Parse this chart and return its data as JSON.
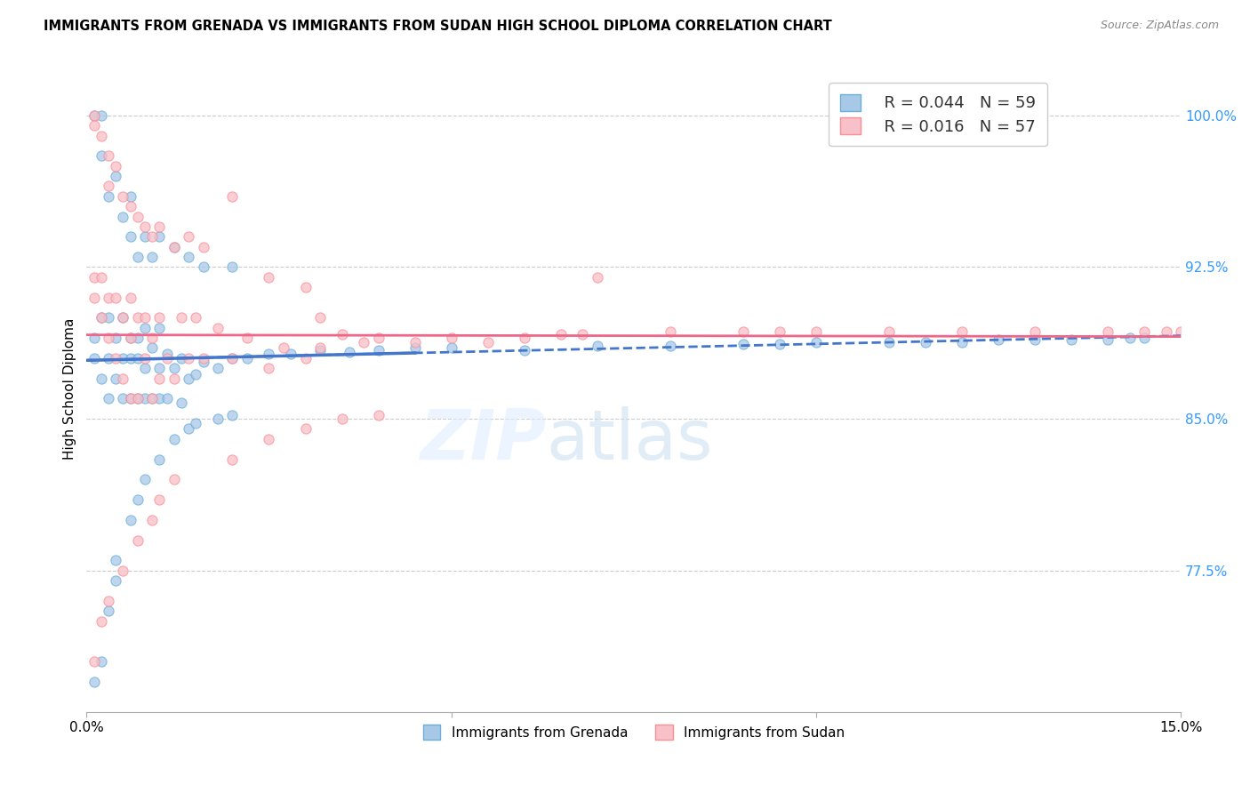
{
  "title": "IMMIGRANTS FROM GRENADA VS IMMIGRANTS FROM SUDAN HIGH SCHOOL DIPLOMA CORRELATION CHART",
  "source": "Source: ZipAtlas.com",
  "ylabel": "High School Diploma",
  "xmin": 0.0,
  "xmax": 0.15,
  "ymin": 0.705,
  "ymax": 1.025,
  "ytick_vals": [
    0.775,
    0.85,
    0.925,
    1.0
  ],
  "ytick_labels": [
    "77.5%",
    "85.0%",
    "92.5%",
    "100.0%"
  ],
  "xtick_vals": [
    0.0,
    0.05,
    0.1,
    0.15
  ],
  "xtick_labels": [
    "0.0%",
    "",
    "",
    "15.0%"
  ],
  "legend_r1": "R = 0.044",
  "legend_n1": "N = 59",
  "legend_r2": "R = 0.016",
  "legend_n2": "N = 57",
  "color_grenada_fill": "#a8c8e8",
  "color_grenada_edge": "#6baed6",
  "color_sudan_fill": "#f8c0c8",
  "color_sudan_edge": "#fc8d94",
  "color_blue_line": "#4477cc",
  "color_pink_line": "#ee6688",
  "color_blue_text": "#3399ff",
  "color_ytick": "#3399ff",
  "grenada_x": [
    0.001,
    0.001,
    0.002,
    0.002,
    0.003,
    0.003,
    0.003,
    0.004,
    0.004,
    0.005,
    0.005,
    0.005,
    0.006,
    0.006,
    0.006,
    0.007,
    0.007,
    0.007,
    0.008,
    0.008,
    0.008,
    0.009,
    0.009,
    0.01,
    0.01,
    0.01,
    0.011,
    0.011,
    0.012,
    0.013,
    0.013,
    0.014,
    0.015,
    0.016,
    0.018,
    0.02,
    0.022,
    0.025,
    0.028,
    0.032,
    0.036,
    0.04,
    0.045,
    0.05,
    0.06,
    0.07,
    0.08,
    0.09,
    0.095,
    0.1,
    0.11,
    0.115,
    0.12,
    0.125,
    0.13,
    0.135,
    0.14,
    0.143,
    0.145
  ],
  "grenada_y": [
    0.88,
    0.89,
    0.87,
    0.9,
    0.86,
    0.88,
    0.9,
    0.87,
    0.89,
    0.86,
    0.88,
    0.9,
    0.86,
    0.88,
    0.89,
    0.86,
    0.88,
    0.89,
    0.86,
    0.875,
    0.895,
    0.86,
    0.885,
    0.86,
    0.875,
    0.895,
    0.86,
    0.882,
    0.875,
    0.858,
    0.88,
    0.87,
    0.872,
    0.878,
    0.875,
    0.88,
    0.88,
    0.882,
    0.882,
    0.884,
    0.883,
    0.884,
    0.885,
    0.885,
    0.884,
    0.886,
    0.886,
    0.887,
    0.887,
    0.888,
    0.888,
    0.888,
    0.888,
    0.889,
    0.889,
    0.889,
    0.889,
    0.89,
    0.89
  ],
  "sudan_x": [
    0.001,
    0.001,
    0.002,
    0.002,
    0.003,
    0.003,
    0.004,
    0.004,
    0.005,
    0.005,
    0.006,
    0.006,
    0.006,
    0.007,
    0.007,
    0.008,
    0.008,
    0.009,
    0.009,
    0.01,
    0.01,
    0.011,
    0.012,
    0.013,
    0.014,
    0.015,
    0.016,
    0.018,
    0.02,
    0.022,
    0.025,
    0.027,
    0.03,
    0.032,
    0.035,
    0.038,
    0.04,
    0.045,
    0.05,
    0.055,
    0.06,
    0.065,
    0.068,
    0.07,
    0.08,
    0.09,
    0.095,
    0.1,
    0.11,
    0.12,
    0.13,
    0.14,
    0.145,
    0.148,
    0.15,
    0.153,
    0.155
  ],
  "sudan_y": [
    0.92,
    0.91,
    0.9,
    0.92,
    0.89,
    0.91,
    0.88,
    0.91,
    0.87,
    0.9,
    0.86,
    0.89,
    0.91,
    0.86,
    0.9,
    0.88,
    0.9,
    0.86,
    0.89,
    0.87,
    0.9,
    0.88,
    0.87,
    0.9,
    0.88,
    0.9,
    0.88,
    0.895,
    0.88,
    0.89,
    0.875,
    0.885,
    0.88,
    0.885,
    0.892,
    0.888,
    0.89,
    0.888,
    0.89,
    0.888,
    0.89,
    0.892,
    0.892,
    0.92,
    0.893,
    0.893,
    0.893,
    0.893,
    0.893,
    0.893,
    0.893,
    0.893,
    0.893,
    0.893,
    0.893,
    0.893,
    0.893
  ],
  "grenada_extra_x": [
    0.001,
    0.002,
    0.002,
    0.003,
    0.004,
    0.005,
    0.006,
    0.006,
    0.007,
    0.008,
    0.009,
    0.01,
    0.012,
    0.014,
    0.016,
    0.02
  ],
  "grenada_extra_y": [
    1.0,
    0.98,
    1.0,
    0.96,
    0.97,
    0.95,
    0.94,
    0.96,
    0.93,
    0.94,
    0.93,
    0.94,
    0.935,
    0.93,
    0.925,
    0.925
  ],
  "sudan_extra_x": [
    0.001,
    0.001,
    0.002,
    0.003,
    0.003,
    0.004,
    0.005,
    0.006,
    0.007,
    0.008,
    0.009,
    0.01,
    0.012,
    0.014,
    0.016,
    0.02,
    0.025,
    0.03,
    0.032
  ],
  "sudan_extra_y": [
    1.0,
    0.995,
    0.99,
    0.98,
    0.965,
    0.975,
    0.96,
    0.955,
    0.95,
    0.945,
    0.94,
    0.945,
    0.935,
    0.94,
    0.935,
    0.96,
    0.92,
    0.915,
    0.9
  ],
  "grenada_low_x": [
    0.001,
    0.002,
    0.003,
    0.004,
    0.004,
    0.006,
    0.007,
    0.008,
    0.01,
    0.012,
    0.014,
    0.015,
    0.018,
    0.02
  ],
  "grenada_low_y": [
    0.72,
    0.73,
    0.755,
    0.77,
    0.78,
    0.8,
    0.81,
    0.82,
    0.83,
    0.84,
    0.845,
    0.848,
    0.85,
    0.852
  ],
  "sudan_low_x": [
    0.001,
    0.002,
    0.003,
    0.005,
    0.007,
    0.009,
    0.01,
    0.012,
    0.02,
    0.025,
    0.03,
    0.035,
    0.04
  ],
  "sudan_low_y": [
    0.73,
    0.75,
    0.76,
    0.775,
    0.79,
    0.8,
    0.81,
    0.82,
    0.83,
    0.84,
    0.845,
    0.85,
    0.852
  ]
}
